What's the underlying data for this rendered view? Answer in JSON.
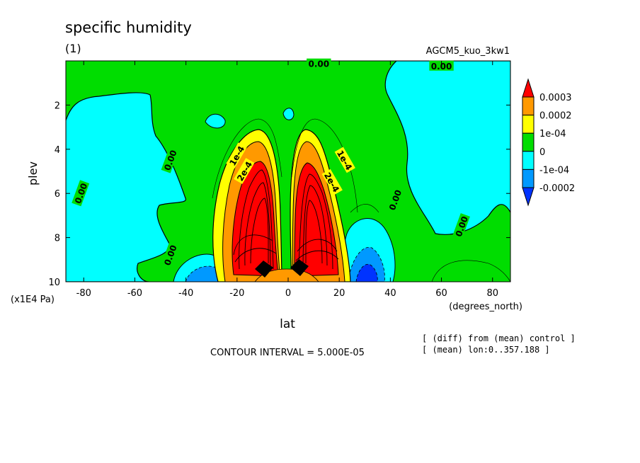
{
  "chart_data": {
    "type": "heatmap",
    "subtype": "filled-contour",
    "title": "specific humidity",
    "subtitle": "(1)",
    "run_label": "AGCM5_kuo_3kw1",
    "xlabel": "lat",
    "xunit": "(degrees_north)",
    "ylabel": "plev",
    "yunit": "(x1E4 Pa)",
    "xlim": [
      -87,
      87
    ],
    "ylim": [
      0,
      10
    ],
    "y_inverted": true,
    "x_ticks": [
      "-80",
      "-60",
      "-40",
      "-20",
      "0",
      "20",
      "40",
      "60",
      "80"
    ],
    "x_tick_values": [
      -80,
      -60,
      -40,
      -20,
      0,
      20,
      40,
      60,
      80
    ],
    "y_ticks": [
      "2",
      "4",
      "6",
      "8",
      "10"
    ],
    "y_tick_values": [
      2,
      4,
      6,
      8,
      10
    ],
    "contour_interval_text": "CONTOUR INTERVAL = 5.000E-05",
    "notes": [
      "[ (diff) from (mean) control ]",
      "[ (mean) lon:0..357.188 ]"
    ],
    "legend": {
      "placement": "right",
      "levels": [
        "0.0003",
        "0.0002",
        "1e-04",
        "0",
        "-1e-04",
        "-0.0002"
      ],
      "colors": [
        "#ff0000",
        "#ff9900",
        "#ffff00",
        "#00dd00",
        "#00ffff",
        "#0099ff",
        "#0033ff"
      ]
    },
    "contour_labels": [
      {
        "text": "0.00",
        "lat": 12,
        "plev": 0.15
      },
      {
        "text": "0.00",
        "lat": 60,
        "plev": 0.25
      },
      {
        "text": "0.00",
        "lat": -46,
        "plev": 4.5
      },
      {
        "text": "0.00",
        "lat": 42,
        "plev": 6.3
      },
      {
        "text": "0.00",
        "lat": -81,
        "plev": 6.0
      },
      {
        "text": "0.00",
        "lat": -46,
        "plev": 8.8
      },
      {
        "text": "0.00",
        "lat": 68,
        "plev": 7.5
      },
      {
        "text": "1e-4",
        "lat": -20,
        "plev": 4.3
      },
      {
        "text": "2e-4",
        "lat": -17,
        "plev": 5.0
      },
      {
        "text": "1e-4",
        "lat": 22,
        "plev": 4.5
      },
      {
        "text": "2e-4",
        "lat": 17,
        "plev": 5.5
      }
    ],
    "features": [
      {
        "label": "positive maximum",
        "lat": -8,
        "plev": 9.3,
        "value": 0.00045
      },
      {
        "label": "positive maximum",
        "lat": 8,
        "plev": 9.2,
        "value": 0.00045
      },
      {
        "label": "negative minimum",
        "lat": -33,
        "plev": 9.6,
        "value": -0.00015
      },
      {
        "label": "negative minimum",
        "lat": 30,
        "plev": 9.6,
        "value": -0.0002
      }
    ]
  }
}
